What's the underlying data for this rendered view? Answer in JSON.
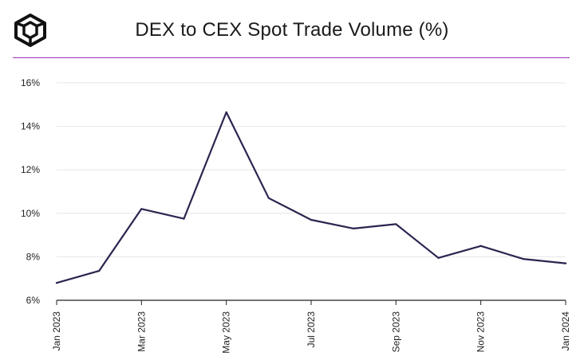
{
  "header": {
    "title": "DEX to CEX Spot Trade Volume (%)",
    "logo_icon": "cube-logo-icon"
  },
  "colors": {
    "line": "#2b2550",
    "divider": "#9b30b8",
    "grid": "#e6e6e6"
  },
  "chart_data": {
    "type": "line",
    "title": "DEX to CEX Spot Trade Volume (%)",
    "xlabel": "",
    "ylabel": "",
    "ylim": [
      6,
      16
    ],
    "yticks": [
      "6%",
      "8%",
      "10%",
      "12%",
      "14%",
      "16%"
    ],
    "x": [
      "Jan 2023",
      "Feb 2023",
      "Mar 2023",
      "Apr 2023",
      "May 2023",
      "Jun 2023",
      "Jul 2023",
      "Aug 2023",
      "Sep 2023",
      "Oct 2023",
      "Nov 2023",
      "Dec 2023",
      "Jan 2024"
    ],
    "xtick_labels": [
      "Jan 2023",
      "Mar 2023",
      "May 2023",
      "Jul 2023",
      "Sep 2023",
      "Nov 2023",
      "Jan 2024"
    ],
    "series": [
      {
        "values": [
          6.8,
          7.35,
          10.2,
          9.75,
          14.65,
          10.7,
          9.7,
          9.3,
          9.5,
          7.95,
          8.5,
          7.9,
          7.7
        ]
      }
    ],
    "grid": true,
    "legend": "none"
  }
}
